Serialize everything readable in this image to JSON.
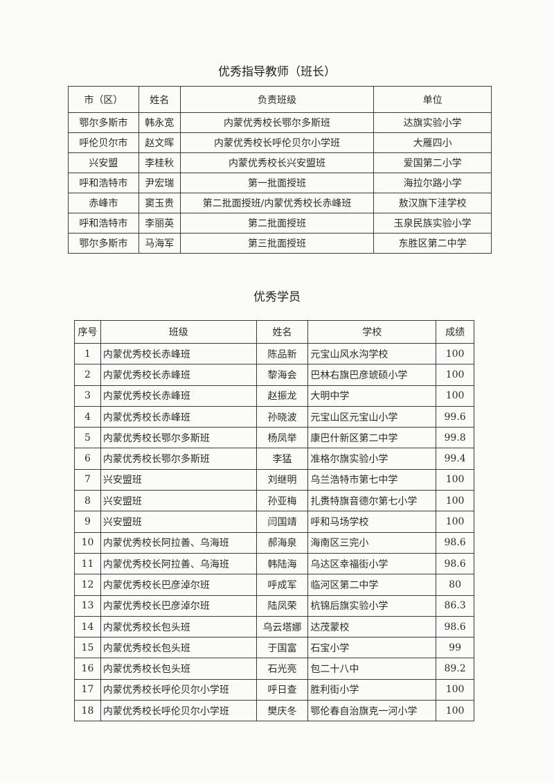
{
  "teachers": {
    "title": "优秀指导教师（班长）",
    "headers": [
      "市（区）",
      "姓名",
      "负责班级",
      "单位"
    ],
    "rows": [
      [
        "鄂尔多斯市",
        "韩永宽",
        "内蒙优秀校长鄂尔多斯班",
        "达旗实验小学"
      ],
      [
        "呼伦贝尔市",
        "赵文晖",
        "内蒙优秀校长呼伦贝尔小学班",
        "大雁四小"
      ],
      [
        "兴安盟",
        "李桂秋",
        "内蒙优秀校长兴安盟班",
        "爱国第二小学"
      ],
      [
        "呼和浩特市",
        "尹宏瑞",
        "第一批面授班",
        "海拉尔路小学"
      ],
      [
        "赤峰市",
        "窦玉贵",
        "第二批面授班/内蒙优秀校长赤峰班",
        "敖汉旗下洼学校"
      ],
      [
        "呼和浩特市",
        "李丽英",
        "第二批面授班",
        "玉泉民族实验小学"
      ],
      [
        "鄂尔多斯市",
        "马海军",
        "第三批面授班",
        "东胜区第二中学"
      ]
    ]
  },
  "students": {
    "title": "优秀学员",
    "headers": [
      "序号",
      "班级",
      "姓名",
      "学校",
      "成绩"
    ],
    "rows": [
      [
        "1",
        "内蒙优秀校长赤峰班",
        "陈品新",
        "元宝山风水沟学校",
        "100"
      ],
      [
        "2",
        "内蒙优秀校长赤峰班",
        "黎海会",
        "巴林右旗巴彦琥硕小学",
        "100"
      ],
      [
        "3",
        "内蒙优秀校长赤峰班",
        "赵振龙",
        "大明中学",
        "100"
      ],
      [
        "4",
        "内蒙优秀校长赤峰班",
        "孙晓波",
        "元宝山区元宝山小学",
        "99.6"
      ],
      [
        "5",
        "内蒙优秀校长鄂尔多斯班",
        "杨凤举",
        "康巴什新区第二中学",
        "99.8"
      ],
      [
        "6",
        "内蒙优秀校长鄂尔多斯班",
        "李猛",
        "准格尔旗实验小学",
        "99.4"
      ],
      [
        "7",
        "兴安盟班",
        "刘继明",
        "乌兰浩特市第七中学",
        "100"
      ],
      [
        "8",
        "兴安盟班",
        "孙亚梅",
        "扎赉特旗音德尔第七小学",
        "100"
      ],
      [
        "9",
        "兴安盟班",
        "闫国靖",
        "呼和马场学校",
        "100"
      ],
      [
        "10",
        "内蒙优秀校长阿拉善、乌海班",
        "郝海泉",
        "海南区三完小",
        "98.6"
      ],
      [
        "11",
        "内蒙优秀校长阿拉善、乌海班",
        "韩陆海",
        "乌达区幸福街小学",
        "98.6"
      ],
      [
        "12",
        "内蒙优秀校长巴彦淖尔班",
        "呼成军",
        "临河区第二中学",
        "80"
      ],
      [
        "13",
        "内蒙优秀校长巴彦淖尔班",
        "陆凤荣",
        "杭锦后旗实验小学",
        "86.3"
      ],
      [
        "14",
        "内蒙优秀校长包头班",
        "乌云塔娜",
        "达茂蒙校",
        "98.6"
      ],
      [
        "15",
        "内蒙优秀校长包头班",
        "于国富",
        "石宝小学",
        "99"
      ],
      [
        "16",
        "内蒙优秀校长包头班",
        "石光亮",
        "包二十八中",
        "89.2"
      ],
      [
        "17",
        "内蒙优秀校长呼伦贝尔小学班",
        "呼日查",
        "胜利街小学",
        "100"
      ],
      [
        "18",
        "内蒙优秀校长呼伦贝尔小学班",
        "樊庆冬",
        "鄂伦春自治旗克一河小学",
        "100"
      ]
    ]
  }
}
